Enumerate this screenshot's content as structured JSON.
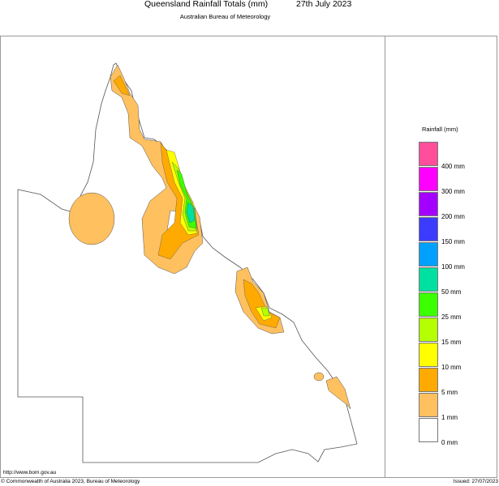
{
  "header": {
    "title": "Queensland Rainfall Totals (mm)",
    "date": "27th July 2023",
    "subtitle": "Australian Bureau of Meteorology"
  },
  "legend": {
    "title": "Rainfall (mm)",
    "bins": [
      {
        "color": "#ff4f9c",
        "label": ""
      },
      {
        "color": "#ff00ff",
        "label": "400 mm"
      },
      {
        "color": "#a400ff",
        "label": "300 mm"
      },
      {
        "color": "#3c3cff",
        "label": "200 mm"
      },
      {
        "color": "#00a0ff",
        "label": "150 mm"
      },
      {
        "color": "#00e0a0",
        "label": "100 mm"
      },
      {
        "color": "#3cff00",
        "label": "50 mm"
      },
      {
        "color": "#b4ff00",
        "label": "25 mm"
      },
      {
        "color": "#ffff00",
        "label": "15 mm"
      },
      {
        "color": "#ffaa00",
        "label": "10 mm"
      },
      {
        "color": "#ffc060",
        "label": "5 mm"
      },
      {
        "color": "#ffffff",
        "label": "1 mm"
      }
    ],
    "bottom_label": "0 mm"
  },
  "footer": {
    "url": "http://www.bom.gov.au",
    "copyright": "© Commonwealth of Australia 2023, Bureau of Meteorology",
    "issued": "Issued: 27/07/2023"
  }
}
